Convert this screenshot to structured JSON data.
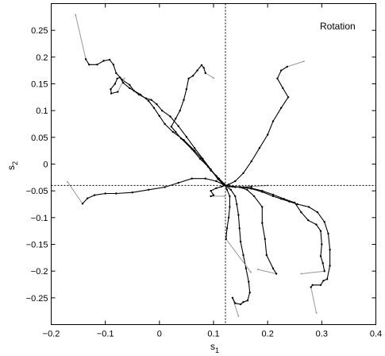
{
  "chart_data": {
    "type": "line",
    "annotation": "Rotation",
    "xlabel": "s",
    "xlabel_sub": "1",
    "ylabel": "s",
    "ylabel_sub": "2",
    "xlim": [
      -0.2,
      0.4
    ],
    "ylim": [
      -0.3,
      0.3
    ],
    "xticks": [
      -0.2,
      -0.1,
      0,
      0.1,
      0.2,
      0.3,
      0.4
    ],
    "xtick_labels": [
      "−0.2",
      "−0.1",
      "0",
      "0.1",
      "0.2",
      "0.3",
      "0.4"
    ],
    "yticks": [
      -0.25,
      -0.2,
      -0.15,
      -0.1,
      -0.05,
      0,
      0.05,
      0.1,
      0.15,
      0.2,
      0.25
    ],
    "ytick_labels": [
      "−0.25",
      "−0.2",
      "−0.15",
      "−0.1",
      "−0.05",
      "0",
      "0.05",
      "0.1",
      "0.15",
      "0.2",
      "0.25"
    ],
    "reference_lines": {
      "x": 0.122,
      "y": -0.04
    },
    "colors": {
      "trajectory": "#000000",
      "lead_in": "#999999",
      "reference": "#000000"
    },
    "series": [
      {
        "lead": [
          [
            -0.155,
            0.279
          ],
          [
            -0.136,
            0.196
          ]
        ],
        "path": [
          [
            -0.136,
            0.196
          ],
          [
            -0.13,
            0.186
          ],
          [
            -0.115,
            0.186
          ],
          [
            -0.103,
            0.193
          ],
          [
            -0.092,
            0.195
          ],
          [
            -0.085,
            0.186
          ],
          [
            -0.08,
            0.17
          ],
          [
            -0.068,
            0.157
          ],
          [
            -0.055,
            0.148
          ],
          [
            -0.047,
            0.137
          ],
          [
            -0.038,
            0.13
          ],
          [
            -0.025,
            0.123
          ],
          [
            -0.015,
            0.12
          ],
          [
            -0.005,
            0.112
          ],
          [
            0.005,
            0.1
          ],
          [
            0.02,
            0.089
          ],
          [
            0.035,
            0.071
          ],
          [
            0.05,
            0.051
          ],
          [
            0.065,
            0.03
          ],
          [
            0.08,
            0.01
          ],
          [
            0.095,
            -0.01
          ],
          [
            0.108,
            -0.028
          ],
          [
            0.118,
            -0.038
          ],
          [
            0.122,
            -0.04
          ]
        ]
      },
      {
        "lead": [
          [
            -0.065,
            0.16
          ],
          [
            -0.077,
            0.135
          ]
        ],
        "path": [
          [
            -0.077,
            0.135
          ],
          [
            -0.089,
            0.132
          ],
          [
            -0.09,
            0.14
          ],
          [
            -0.082,
            0.15
          ],
          [
            -0.078,
            0.16
          ],
          [
            -0.073,
            0.162
          ],
          [
            -0.067,
            0.152
          ],
          [
            -0.055,
            0.142
          ],
          [
            -0.035,
            0.13
          ],
          [
            -0.02,
            0.118
          ],
          [
            -0.01,
            0.105
          ],
          [
            0.0,
            0.09
          ],
          [
            0.01,
            0.075
          ],
          [
            0.025,
            0.06
          ],
          [
            0.045,
            0.045
          ],
          [
            0.065,
            0.025
          ],
          [
            0.08,
            0.008
          ],
          [
            0.095,
            -0.012
          ],
          [
            0.11,
            -0.027
          ],
          [
            0.12,
            -0.037
          ],
          [
            0.122,
            -0.04
          ]
        ]
      },
      {
        "lead": [
          [
            0.1,
            0.161
          ],
          [
            0.085,
            0.17
          ]
        ],
        "path": [
          [
            0.085,
            0.17
          ],
          [
            0.082,
            0.18
          ],
          [
            0.078,
            0.185
          ],
          [
            0.07,
            0.175
          ],
          [
            0.062,
            0.165
          ],
          [
            0.054,
            0.16
          ],
          [
            0.05,
            0.14
          ],
          [
            0.045,
            0.12
          ],
          [
            0.038,
            0.1
          ],
          [
            0.03,
            0.085
          ],
          [
            0.022,
            0.07
          ],
          [
            0.03,
            0.06
          ],
          [
            0.04,
            0.048
          ],
          [
            0.06,
            0.028
          ],
          [
            0.075,
            0.01
          ],
          [
            0.09,
            -0.005
          ],
          [
            0.105,
            -0.022
          ],
          [
            0.115,
            -0.033
          ],
          [
            0.122,
            -0.04
          ]
        ]
      },
      {
        "lead": [
          [
            0.267,
            0.192
          ],
          [
            0.236,
            0.182
          ]
        ],
        "path": [
          [
            0.236,
            0.182
          ],
          [
            0.225,
            0.175
          ],
          [
            0.218,
            0.16
          ],
          [
            0.228,
            0.142
          ],
          [
            0.238,
            0.125
          ],
          [
            0.225,
            0.105
          ],
          [
            0.21,
            0.08
          ],
          [
            0.2,
            0.055
          ],
          [
            0.185,
            0.03
          ],
          [
            0.17,
            0.005
          ],
          [
            0.155,
            -0.017
          ],
          [
            0.14,
            -0.032
          ],
          [
            0.128,
            -0.038
          ],
          [
            0.122,
            -0.04
          ]
        ]
      },
      {
        "lead": [
          [
            -0.17,
            -0.033
          ],
          [
            -0.142,
            -0.074
          ]
        ],
        "path": [
          [
            -0.142,
            -0.074
          ],
          [
            -0.133,
            -0.064
          ],
          [
            -0.12,
            -0.058
          ],
          [
            -0.1,
            -0.055
          ],
          [
            -0.08,
            -0.055
          ],
          [
            -0.05,
            -0.053
          ],
          [
            -0.02,
            -0.048
          ],
          [
            0.01,
            -0.043
          ],
          [
            0.035,
            -0.035
          ],
          [
            0.06,
            -0.027
          ],
          [
            0.085,
            -0.027
          ],
          [
            0.105,
            -0.032
          ],
          [
            0.118,
            -0.038
          ],
          [
            0.122,
            -0.04
          ]
        ]
      },
      {
        "lead": [
          [
            0.12,
            -0.06
          ],
          [
            0.095,
            -0.06
          ]
        ],
        "path": [
          [
            0.095,
            -0.06
          ],
          [
            0.1,
            -0.058
          ],
          [
            0.095,
            -0.05
          ],
          [
            0.105,
            -0.045
          ],
          [
            0.115,
            -0.042
          ],
          [
            0.122,
            -0.04
          ]
        ]
      },
      {
        "lead": [
          [
            0.2,
            -0.04
          ],
          [
            0.17,
            -0.042
          ]
        ],
        "path": [
          [
            0.17,
            -0.042
          ],
          [
            0.155,
            -0.043
          ],
          [
            0.14,
            -0.043
          ],
          [
            0.13,
            -0.042
          ],
          [
            0.122,
            -0.04
          ]
        ]
      },
      {
        "lead": [
          [
            0.29,
            -0.278
          ],
          [
            0.28,
            -0.23
          ]
        ],
        "path": [
          [
            0.28,
            -0.23
          ],
          [
            0.283,
            -0.226
          ],
          [
            0.298,
            -0.226
          ],
          [
            0.303,
            -0.218
          ],
          [
            0.31,
            -0.215
          ],
          [
            0.315,
            -0.19
          ],
          [
            0.315,
            -0.16
          ],
          [
            0.312,
            -0.13
          ],
          [
            0.305,
            -0.108
          ],
          [
            0.292,
            -0.09
          ],
          [
            0.276,
            -0.08
          ],
          [
            0.255,
            -0.075
          ],
          [
            0.24,
            -0.07
          ],
          [
            0.225,
            -0.065
          ],
          [
            0.21,
            -0.06
          ],
          [
            0.19,
            -0.052
          ],
          [
            0.17,
            -0.046
          ],
          [
            0.15,
            -0.043
          ],
          [
            0.135,
            -0.042
          ],
          [
            0.122,
            -0.04
          ]
        ]
      },
      {
        "lead": [
          [
            0.262,
            -0.205
          ],
          [
            0.305,
            -0.2
          ]
        ],
        "path": [
          [
            0.305,
            -0.2
          ],
          [
            0.302,
            -0.185
          ],
          [
            0.298,
            -0.172
          ],
          [
            0.3,
            -0.15
          ],
          [
            0.298,
            -0.125
          ],
          [
            0.29,
            -0.113
          ],
          [
            0.275,
            -0.105
          ],
          [
            0.262,
            -0.09
          ],
          [
            0.25,
            -0.072
          ],
          [
            0.23,
            -0.065
          ],
          [
            0.21,
            -0.057
          ],
          [
            0.19,
            -0.05
          ],
          [
            0.17,
            -0.045
          ],
          [
            0.15,
            -0.043
          ],
          [
            0.13,
            -0.041
          ],
          [
            0.122,
            -0.04
          ]
        ]
      },
      {
        "lead": [
          [
            0.182,
            -0.197
          ],
          [
            0.216,
            -0.205
          ]
        ],
        "path": [
          [
            0.216,
            -0.205
          ],
          [
            0.21,
            -0.195
          ],
          [
            0.198,
            -0.17
          ],
          [
            0.195,
            -0.14
          ],
          [
            0.19,
            -0.11
          ],
          [
            0.19,
            -0.08
          ],
          [
            0.175,
            -0.06
          ],
          [
            0.162,
            -0.048
          ],
          [
            0.148,
            -0.043
          ],
          [
            0.135,
            -0.042
          ],
          [
            0.122,
            -0.04
          ]
        ]
      },
      {
        "lead": [
          [
            0.146,
            -0.284
          ],
          [
            0.135,
            -0.25
          ]
        ],
        "path": [
          [
            0.135,
            -0.25
          ],
          [
            0.14,
            -0.26
          ],
          [
            0.15,
            -0.262
          ],
          [
            0.155,
            -0.258
          ],
          [
            0.163,
            -0.255
          ],
          [
            0.167,
            -0.24
          ],
          [
            0.165,
            -0.22
          ],
          [
            0.16,
            -0.195
          ],
          [
            0.155,
            -0.17
          ],
          [
            0.15,
            -0.145
          ],
          [
            0.148,
            -0.12
          ],
          [
            0.146,
            -0.095
          ],
          [
            0.143,
            -0.075
          ],
          [
            0.14,
            -0.06
          ],
          [
            0.132,
            -0.048
          ],
          [
            0.122,
            -0.04
          ]
        ]
      },
      {
        "lead": [
          [
            0.169,
            -0.202
          ],
          [
            0.123,
            -0.14
          ]
        ],
        "path": [
          [
            0.123,
            -0.14
          ],
          [
            0.125,
            -0.12
          ],
          [
            0.128,
            -0.1
          ],
          [
            0.13,
            -0.08
          ],
          [
            0.13,
            -0.06
          ],
          [
            0.125,
            -0.048
          ],
          [
            0.122,
            -0.04
          ]
        ]
      }
    ]
  }
}
